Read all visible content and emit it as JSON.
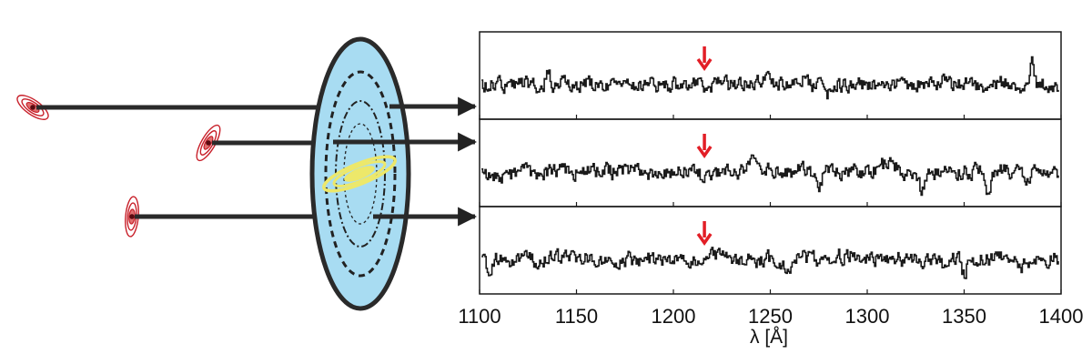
{
  "figure": {
    "xlabel": "λ [Å]",
    "colors": {
      "halo_fill": "#a8dcf2",
      "halo_stroke": "#2a2a2a",
      "galaxy": "#ede86a",
      "quasar": "#c8202a",
      "arrow_marker": "#e21e26",
      "spectrum": "#1a1a1a"
    },
    "icons": [
      "quasar-icon",
      "halo-galaxy-icon",
      "absorption-marker-icon"
    ]
  },
  "chart_data": {
    "type": "line",
    "xlim": [
      1100,
      1400
    ],
    "xticks": [
      1100,
      1150,
      1200,
      1250,
      1300,
      1350,
      1400
    ],
    "xtick_labels": [
      "1100",
      "1150",
      "1200",
      "1250",
      "1300",
      "1350",
      "1400"
    ],
    "xlabel": "λ [Å]",
    "marker_wavelength": 1216,
    "panels": 3,
    "series": [
      {
        "features": [
          {
            "x": 1135,
            "depth": -0.45,
            "w": 1.5
          },
          {
            "x": 1245,
            "depth": -0.2,
            "w": 4
          },
          {
            "x": 1265,
            "depth": -0.25,
            "w": 3
          },
          {
            "x": 1280,
            "depth": 0.35,
            "w": 2
          },
          {
            "x": 1340,
            "depth": -0.3,
            "w": 2
          },
          {
            "x": 1360,
            "depth": 0.25,
            "w": 3
          },
          {
            "x": 1385,
            "depth": -1.2,
            "w": 1.3
          }
        ]
      },
      {
        "features": [
          {
            "x": 1110,
            "depth": 0.3,
            "w": 6
          },
          {
            "x": 1190,
            "depth": 0.2,
            "w": 5
          },
          {
            "x": 1218,
            "depth": 0.35,
            "w": 5
          },
          {
            "x": 1240,
            "depth": -0.4,
            "w": 2
          },
          {
            "x": 1275,
            "depth": 0.45,
            "w": 2
          },
          {
            "x": 1310,
            "depth": -0.3,
            "w": 6
          },
          {
            "x": 1328,
            "depth": 0.75,
            "w": 2
          },
          {
            "x": 1362,
            "depth": 0.8,
            "w": 2
          },
          {
            "x": 1382,
            "depth": 0.55,
            "w": 1.5
          }
        ]
      },
      {
        "features": [
          {
            "x": 1105,
            "depth": 0.5,
            "w": 2
          },
          {
            "x": 1160,
            "depth": 0.25,
            "w": 3
          },
          {
            "x": 1220,
            "depth": -0.3,
            "w": 2
          },
          {
            "x": 1258,
            "depth": 0.45,
            "w": 3
          },
          {
            "x": 1290,
            "depth": -0.15,
            "w": 8
          },
          {
            "x": 1340,
            "depth": 0.25,
            "w": 4
          },
          {
            "x": 1350,
            "depth": 0.7,
            "w": 1.5
          },
          {
            "x": 1380,
            "depth": 0.35,
            "w": 2
          }
        ]
      }
    ]
  }
}
